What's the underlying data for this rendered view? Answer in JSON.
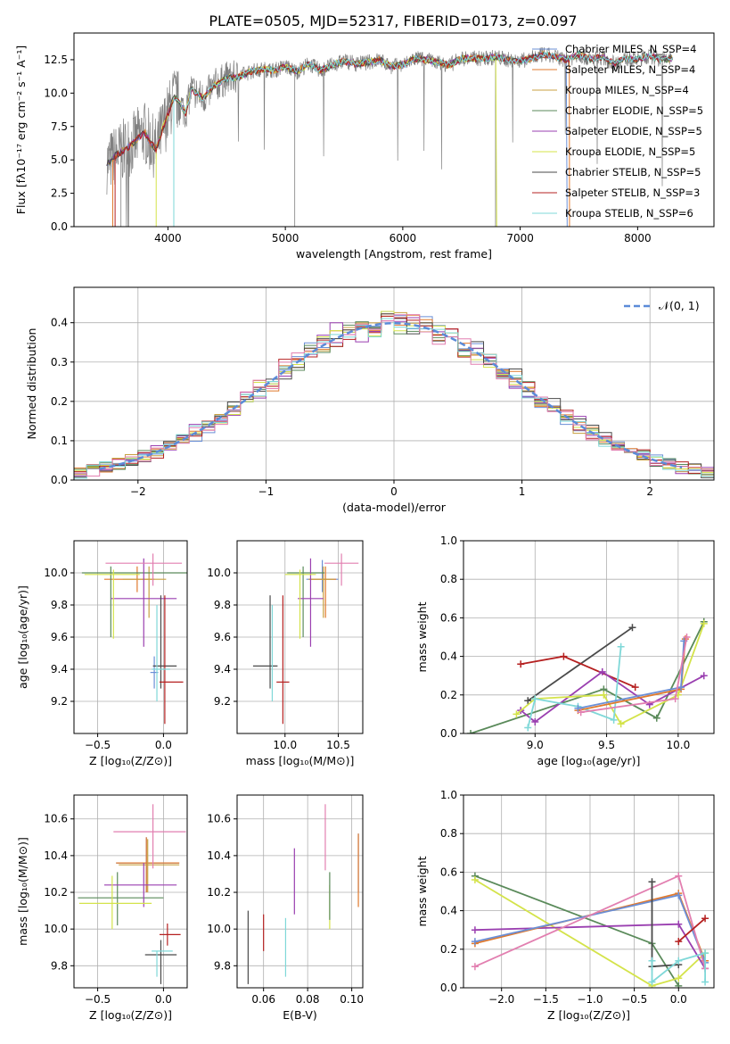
{
  "figure_title": "PLATE=0505, MJD=52317, FIBERID=0173, z=0.097",
  "colors": {
    "chabrier_miles": "#6b8fd6",
    "salpeter_miles": "#e07a2e",
    "kroupa_miles": "#c8a040",
    "chabrier_elodie": "#5a8a5a",
    "salpeter_elodie": "#9a3fb0",
    "kroupa_elodie": "#d4e34a",
    "chabrier_stelib": "#4a4a4a",
    "salpeter_stelib": "#b52020",
    "kroupa_stelib": "#7fd8d8",
    "pink": "#e27fb0",
    "data": "#808080",
    "normal": "#5b8bd8"
  },
  "chart_data": [
    {
      "id": "spectrum",
      "type": "line",
      "xlabel": "wavelength [Angstrom, rest frame]",
      "ylabel": "Flux [fλ10⁻¹⁷ erg cm⁻² s⁻¹ A⁻¹]",
      "xlim": [
        3200,
        8650
      ],
      "ylim": [
        0,
        14.5
      ],
      "xticks": [
        4000,
        5000,
        6000,
        7000,
        8000
      ],
      "yticks": [
        0.0,
        2.5,
        5.0,
        7.5,
        10.0,
        12.5
      ],
      "grid": false,
      "legend_position": "top-right",
      "legend": [
        "Chabrier MILES, N_SSP=4",
        "Salpeter MILES, N_SSP=4",
        "Kroupa MILES, N_SSP=4",
        "Chabrier ELODIE, N_SSP=5",
        "Salpeter ELODIE, N_SSP=5",
        "Kroupa ELODIE, N_SSP=5",
        "Chabrier STELIB, N_SSP=5",
        "Salpeter STELIB, N_SSP=3",
        "Kroupa STELIB, N_SSP=6"
      ],
      "model_x": [
        3500,
        3550,
        3600,
        3650,
        3700,
        3750,
        3800,
        3850,
        3900,
        3950,
        4000,
        4050,
        4100,
        4150,
        4200,
        4300,
        4400,
        4500,
        4600,
        4700,
        4800,
        4900,
        5000,
        5100,
        5200,
        5300,
        5400,
        5500,
        5600,
        5700,
        5800,
        5900,
        6000,
        6100,
        6200,
        6300,
        6400,
        6500,
        6600,
        6700,
        6800,
        6900,
        7000,
        7100,
        7200,
        7300,
        7400,
        7500,
        7600,
        7700,
        7800,
        7900,
        8000,
        8100,
        8200,
        8300
      ],
      "model_y": [
        4.8,
        5.3,
        5.6,
        5.9,
        6.2,
        6.7,
        7.1,
        6.3,
        5.8,
        7.2,
        8.4,
        9.7,
        9.3,
        8.5,
        10.3,
        9.6,
        10.6,
        11.1,
        11.2,
        11.6,
        11.8,
        11.7,
        12.0,
        11.6,
        12.2,
        11.7,
        12.1,
        12.4,
        12.2,
        12.3,
        12.5,
        12.0,
        12.1,
        12.6,
        12.5,
        12.3,
        12.1,
        12.6,
        12.6,
        12.6,
        12.7,
        12.5,
        12.4,
        12.6,
        12.9,
        12.7,
        12.5,
        12.9,
        12.5,
        12.7,
        12.2,
        12.6,
        12.5,
        12.8,
        12.5,
        12.6
      ]
    },
    {
      "id": "residuals",
      "type": "histogram",
      "xlabel": "(data-model)/error",
      "ylabel": "Normed distribution",
      "xlim": [
        -2.5,
        2.5
      ],
      "ylim": [
        0,
        0.49
      ],
      "xticks": [
        -2,
        -1,
        0,
        1,
        2
      ],
      "yticks": [
        0.0,
        0.1,
        0.2,
        0.3,
        0.4
      ],
      "grid": true,
      "legend": [
        "𝒩(0, 1)"
      ],
      "legend_position": "top-right",
      "bin_width": 0.1
    },
    {
      "id": "age_vs_Z",
      "type": "errorbar",
      "xlabel": "Z [log₁₀(Z/Z⊙)]",
      "ylabel": "age  [log₁₀(age/yr)]",
      "xlim": [
        -0.68,
        0.18
      ],
      "ylim": [
        9.0,
        10.2
      ],
      "xticks": [
        -0.5,
        0.0
      ],
      "xticklabels": [
        "−0.5",
        "0.0"
      ],
      "yticks": [
        9.2,
        9.4,
        9.6,
        9.8,
        10.0
      ],
      "grid": true,
      "points": [
        {
          "c": "chabrier_miles",
          "x": -0.07,
          "y": 9.38,
          "xe": [
            0.03,
            0.03
          ],
          "ye": [
            0.1,
            0.1
          ]
        },
        {
          "c": "salpeter_miles",
          "x": -0.2,
          "y": 9.96,
          "xe": [
            0.25,
            0.13
          ],
          "ye": [
            0.08,
            0.08
          ]
        },
        {
          "c": "kroupa_miles",
          "x": -0.11,
          "y": 9.96,
          "xe": [
            0.2,
            0.13
          ],
          "ye": [
            0.24,
            0.08
          ]
        },
        {
          "c": "chabrier_elodie",
          "x": -0.4,
          "y": 10.0,
          "xe": [
            0.22,
            0.6
          ],
          "ye": [
            0.4,
            0.04
          ]
        },
        {
          "c": "salpeter_elodie",
          "x": -0.15,
          "y": 9.84,
          "xe": [
            0.25,
            0.25
          ],
          "ye": [
            0.3,
            0.25
          ]
        },
        {
          "c": "kroupa_elodie",
          "x": -0.38,
          "y": 9.99,
          "xe": [
            0.22,
            0.2
          ],
          "ye": [
            0.4,
            0.03
          ]
        },
        {
          "c": "chabrier_stelib",
          "x": -0.02,
          "y": 9.42,
          "xe": [
            0.06,
            0.12
          ],
          "ye": [
            0.14,
            0.44
          ]
        },
        {
          "c": "salpeter_stelib",
          "x": 0.01,
          "y": 9.32,
          "xe": [
            0.04,
            0.14
          ],
          "ye": [
            0.26,
            0.54
          ]
        },
        {
          "c": "kroupa_stelib",
          "x": -0.05,
          "y": 9.4,
          "xe": [
            0.04,
            0.1
          ],
          "ye": [
            0.2,
            0.4
          ]
        },
        {
          "c": "pink",
          "x": -0.08,
          "y": 10.06,
          "xe": [
            0.36,
            0.22
          ],
          "ye": [
            0.14,
            0.06
          ]
        }
      ]
    },
    {
      "id": "age_vs_mass",
      "type": "errorbar",
      "xlabel": "mass [log₁₀(M/M⊙)]",
      "ylabel": "",
      "xlim": [
        9.55,
        10.73
      ],
      "ylim": [
        9.0,
        10.2
      ],
      "xticks": [
        10.0,
        10.5
      ],
      "yticks": [
        9.2,
        9.4,
        9.6,
        9.8,
        10.0
      ],
      "grid": true,
      "points": [
        {
          "c": "chabrier_miles",
          "x": 10.35,
          "y": 9.96,
          "xe": [
            0.15,
            0.15
          ],
          "ye": [
            0.08,
            0.12
          ]
        },
        {
          "c": "salpeter_miles",
          "x": 10.38,
          "y": 9.96,
          "xe": [
            0.15,
            0.1
          ],
          "ye": [
            0.24,
            0.08
          ]
        },
        {
          "c": "kroupa_miles",
          "x": 10.36,
          "y": 9.96,
          "xe": [
            0.14,
            0.1
          ],
          "ye": [
            0.24,
            0.08
          ]
        },
        {
          "c": "chabrier_elodie",
          "x": 10.17,
          "y": 10.0,
          "xe": [
            0.15,
            0.2
          ],
          "ye": [
            0.4,
            0.04
          ]
        },
        {
          "c": "salpeter_elodie",
          "x": 10.24,
          "y": 9.84,
          "xe": [
            0.12,
            0.12
          ],
          "ye": [
            0.3,
            0.25
          ]
        },
        {
          "c": "kroupa_elodie",
          "x": 10.14,
          "y": 9.99,
          "xe": [
            0.14,
            0.15
          ],
          "ye": [
            0.4,
            0.03
          ]
        },
        {
          "c": "chabrier_stelib",
          "x": 9.86,
          "y": 9.42,
          "xe": [
            0.16,
            0.07
          ],
          "ye": [
            0.14,
            0.44
          ]
        },
        {
          "c": "salpeter_stelib",
          "x": 9.98,
          "y": 9.32,
          "xe": [
            0.06,
            0.06
          ],
          "ye": [
            0.26,
            0.54
          ]
        },
        {
          "c": "kroupa_stelib",
          "x": 9.88,
          "y": 9.4,
          "xe": [
            0.0,
            0.0
          ],
          "ye": [
            0.2,
            0.4
          ]
        },
        {
          "c": "pink",
          "x": 10.53,
          "y": 10.06,
          "xe": [
            0.16,
            0.16
          ],
          "ye": [
            0.14,
            0.06
          ]
        }
      ]
    },
    {
      "id": "mass_weight_vs_age",
      "type": "line",
      "xlabel": "age  [log₁₀(age/yr)]",
      "ylabel": "mass weight",
      "xlim": [
        8.5,
        10.25
      ],
      "ylim": [
        0,
        1.0
      ],
      "xticks": [
        9.0,
        9.5,
        10.0
      ],
      "yticks": [
        0.0,
        0.2,
        0.4,
        0.6,
        0.8,
        1.0
      ],
      "grid": true,
      "series": [
        {
          "c": "chabrier_elodie",
          "x": [
            8.55,
            9.48,
            9.85,
            10.18
          ],
          "y": [
            0.0,
            0.23,
            0.08,
            0.58
          ]
        },
        {
          "c": "chabrier_stelib",
          "x": [
            8.95,
            9.68
          ],
          "y": [
            0.17,
            0.55
          ]
        },
        {
          "c": "salpeter_stelib",
          "x": [
            8.9,
            9.2,
            9.7
          ],
          "y": [
            0.36,
            0.4,
            0.24
          ]
        },
        {
          "c": "salpeter_elodie",
          "x": [
            8.9,
            9.0,
            9.47,
            9.8,
            10.18
          ],
          "y": [
            0.12,
            0.06,
            0.32,
            0.15,
            0.3
          ]
        },
        {
          "c": "kroupa_elodie",
          "x": [
            8.87,
            9.0,
            9.48,
            9.6,
            10.0,
            10.18
          ],
          "y": [
            0.1,
            0.18,
            0.2,
            0.05,
            0.2,
            0.57
          ]
        },
        {
          "c": "kroupa_stelib",
          "x": [
            8.95,
            9.0,
            9.3,
            9.55,
            9.6
          ],
          "y": [
            0.03,
            0.18,
            0.14,
            0.07,
            0.45
          ]
        },
        {
          "c": "salpeter_miles",
          "x": [
            9.3,
            10.02,
            10.05
          ],
          "y": [
            0.12,
            0.23,
            0.49
          ]
        },
        {
          "c": "chabrier_miles",
          "x": [
            9.3,
            10.02,
            10.04
          ],
          "y": [
            0.13,
            0.24,
            0.48
          ]
        },
        {
          "c": "pink",
          "x": [
            9.32,
            9.98,
            10.06
          ],
          "y": [
            0.11,
            0.18,
            0.5
          ]
        }
      ]
    },
    {
      "id": "mass_vs_Z",
      "type": "errorbar",
      "xlabel": "Z [log₁₀(Z/Z⊙)]",
      "ylabel": "mass [log₁₀(M/M⊙)]",
      "xlim": [
        -0.68,
        0.18
      ],
      "ylim": [
        9.68,
        10.73
      ],
      "xticks": [
        -0.5,
        0.0
      ],
      "xticklabels": [
        "−0.5",
        "0.0"
      ],
      "yticks": [
        9.8,
        10.0,
        10.2,
        10.4,
        10.6
      ],
      "grid": true,
      "points": [
        {
          "c": "chabrier_miles",
          "x": -0.13,
          "y": 10.36,
          "xe": [
            0.23,
            0.25
          ],
          "ye": [
            0.16,
            0.14
          ]
        },
        {
          "c": "salpeter_miles",
          "x": -0.13,
          "y": 10.36,
          "xe": [
            0.23,
            0.25
          ],
          "ye": [
            0.16,
            0.14
          ]
        },
        {
          "c": "kroupa_miles",
          "x": -0.12,
          "y": 10.35,
          "xe": [
            0.22,
            0.24
          ],
          "ye": [
            0.15,
            0.14
          ]
        },
        {
          "c": "chabrier_elodie",
          "x": -0.35,
          "y": 10.17,
          "xe": [
            0.3,
            0.35
          ],
          "ye": [
            0.15,
            0.14
          ]
        },
        {
          "c": "salpeter_elodie",
          "x": -0.15,
          "y": 10.24,
          "xe": [
            0.3,
            0.25
          ],
          "ye": [
            0.12,
            0.12
          ]
        },
        {
          "c": "kroupa_elodie",
          "x": -0.39,
          "y": 10.14,
          "xe": [
            0.25,
            0.3
          ],
          "ye": [
            0.14,
            0.15
          ]
        },
        {
          "c": "chabrier_stelib",
          "x": -0.02,
          "y": 9.86,
          "xe": [
            0.12,
            0.12
          ],
          "ye": [
            0.16,
            0.08
          ]
        },
        {
          "c": "salpeter_stelib",
          "x": 0.03,
          "y": 9.97,
          "xe": [
            0.06,
            0.1
          ],
          "ye": [
            0.06,
            0.06
          ]
        },
        {
          "c": "kroupa_stelib",
          "x": -0.05,
          "y": 9.88,
          "xe": [
            0.04,
            0.12
          ],
          "ye": [
            0.14,
            0.0
          ]
        },
        {
          "c": "pink",
          "x": -0.08,
          "y": 10.53,
          "xe": [
            0.3,
            0.25
          ],
          "ye": [
            0.2,
            0.15
          ]
        }
      ]
    },
    {
      "id": "mass_vs_ebv",
      "type": "errorbar",
      "xlabel": "E(B-V)",
      "ylabel": "",
      "xlim": [
        0.048,
        0.105
      ],
      "ylim": [
        9.68,
        10.73
      ],
      "xticks": [
        0.06,
        0.08,
        0.1
      ],
      "yticks": [
        9.8,
        10.0,
        10.2,
        10.4,
        10.6
      ],
      "grid": true,
      "points": [
        {
          "c": "chabrier_stelib",
          "x": 0.053,
          "y": 9.9,
          "ye": [
            0.2,
            0.2
          ]
        },
        {
          "c": "salpeter_stelib",
          "x": 0.06,
          "y": 9.98,
          "ye": [
            0.1,
            0.1
          ]
        },
        {
          "c": "kroupa_stelib",
          "x": 0.07,
          "y": 9.9,
          "ye": [
            0.16,
            0.16
          ]
        },
        {
          "c": "salpeter_elodie",
          "x": 0.074,
          "y": 10.26,
          "ye": [
            0.18,
            0.18
          ]
        },
        {
          "c": "pink",
          "x": 0.088,
          "y": 10.5,
          "ye": [
            0.18,
            0.18
          ]
        },
        {
          "c": "kroupa_elodie",
          "x": 0.09,
          "y": 10.12,
          "ye": [
            0.12,
            0.12
          ]
        },
        {
          "c": "chabrier_elodie",
          "x": 0.09,
          "y": 10.18,
          "ye": [
            0.13,
            0.13
          ]
        },
        {
          "c": "chabrier_miles",
          "x": 0.103,
          "y": 10.36,
          "ye": [
            0.16,
            0.16
          ]
        },
        {
          "c": "salpeter_miles",
          "x": 0.103,
          "y": 10.32,
          "ye": [
            0.2,
            0.2
          ]
        }
      ]
    },
    {
      "id": "mass_weight_vs_Z",
      "type": "line",
      "xlabel": "Z [log₁₀(Z/Z⊙)]",
      "ylabel": "mass weight",
      "xlim": [
        -2.43,
        0.4
      ],
      "ylim": [
        0,
        1.0
      ],
      "xticks": [
        -2.0,
        -1.5,
        -1.0,
        -0.5,
        0.0
      ],
      "xticklabels": [
        "−2.0",
        "−1.5",
        "−1.0",
        "−0.5",
        "0.0"
      ],
      "yticks": [
        0.0,
        0.2,
        0.4,
        0.6,
        0.8,
        1.0
      ],
      "grid": true,
      "series": [
        {
          "c": "chabrier_elodie",
          "x": [
            -2.3,
            -0.3,
            0.0
          ],
          "y": [
            0.58,
            0.23,
            0.01
          ]
        },
        {
          "c": "kroupa_elodie",
          "x": [
            -2.3,
            -0.3,
            0.0,
            0.3
          ],
          "y": [
            0.56,
            0.01,
            0.05,
            0.18
          ]
        },
        {
          "c": "salpeter_elodie",
          "x": [
            -2.3,
            0.0,
            0.3
          ],
          "y": [
            0.3,
            0.33,
            0.1
          ]
        },
        {
          "c": "salpeter_miles",
          "x": [
            -2.3,
            0.0,
            0.3
          ],
          "y": [
            0.23,
            0.49,
            0.14
          ]
        },
        {
          "c": "chabrier_miles",
          "x": [
            -2.3,
            0.0,
            0.3
          ],
          "y": [
            0.24,
            0.48,
            0.13
          ]
        },
        {
          "c": "pink",
          "x": [
            -2.3,
            0.0,
            0.3
          ],
          "y": [
            0.11,
            0.58,
            0.1
          ]
        },
        {
          "c": "salpeter_stelib",
          "x": [
            0.0,
            0.3
          ],
          "y": [
            0.24,
            0.36
          ]
        },
        {
          "c": "chabrier_stelib",
          "x": [
            -0.3,
            -0.3,
            0.0
          ],
          "y": [
            0.55,
            0.11,
            0.12
          ]
        },
        {
          "c": "kroupa_stelib",
          "x": [
            -0.3,
            -0.3,
            0.0,
            0.3,
            0.3
          ],
          "y": [
            0.14,
            0.03,
            0.14,
            0.18,
            0.03
          ]
        }
      ]
    }
  ]
}
